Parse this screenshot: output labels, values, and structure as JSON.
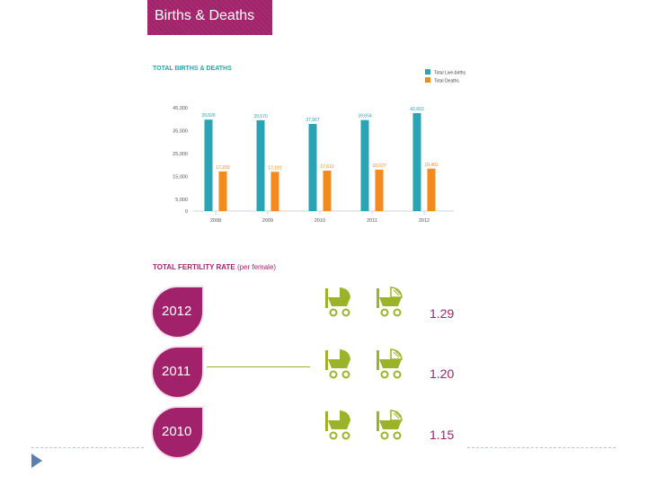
{
  "header": {
    "title": "Births & Deaths"
  },
  "chart_data": {
    "type": "bar",
    "title": "TOTAL BIRTHS & DEATHS",
    "categories": [
      "2008",
      "2009",
      "2010",
      "2011",
      "2012"
    ],
    "series": [
      {
        "name": "Total Live-births",
        "color": "#2aa4b5",
        "values": [
          39826,
          39570,
          37967,
          39654,
          42663
        ],
        "labels": [
          "39,826",
          "39,570",
          "37,967",
          "39,654",
          "42,663"
        ]
      },
      {
        "name": "Total Deaths",
        "color": "#f28a1e",
        "values": [
          17222,
          17101,
          17610,
          18027,
          18481
        ],
        "labels": [
          "17,222",
          "17,101",
          "17,610",
          "18,027",
          "18,481"
        ]
      }
    ],
    "yticks": [
      "0",
      "5,000",
      "15,000",
      "25,000",
      "35,000",
      "45,000"
    ],
    "ytick_values": [
      0,
      5000,
      15000,
      25000,
      35000,
      45000
    ],
    "ylim": [
      0,
      45000
    ],
    "xlabel": "",
    "ylabel": ""
  },
  "fertility": {
    "title": "TOTAL FERTILITY RATE",
    "unit": "(per female)",
    "rows": [
      {
        "year": "2012",
        "rate": "1.29",
        "value": 1.29
      },
      {
        "year": "2011",
        "rate": "1.20",
        "value": 1.2
      },
      {
        "year": "2010",
        "rate": "1.15",
        "value": 1.15
      }
    ]
  },
  "colors": {
    "accent": "#a1226a",
    "births": "#2aa4b5",
    "deaths": "#f28a1e",
    "stroller": "#9bb32a"
  }
}
